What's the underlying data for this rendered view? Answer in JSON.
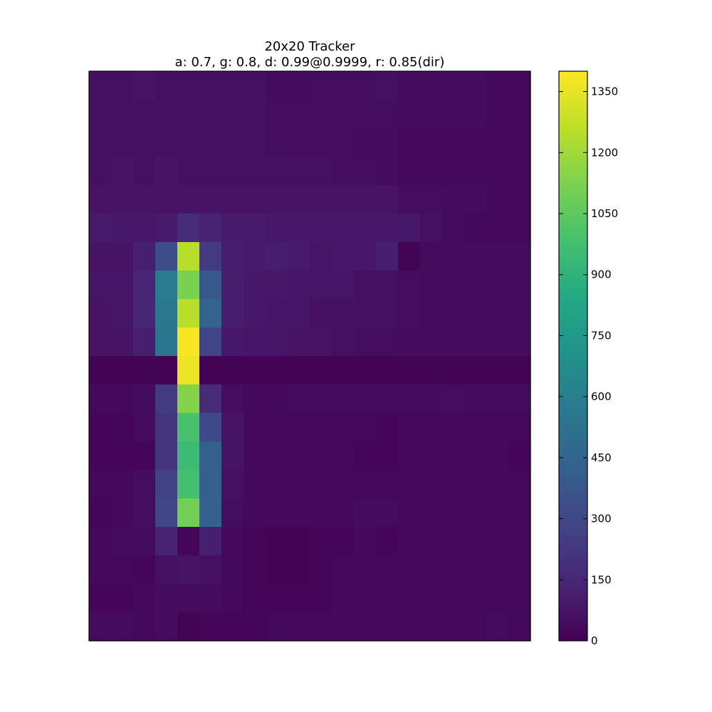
{
  "chart_data": {
    "type": "heatmap",
    "title": "20x20 Tracker",
    "subtitle": "a: 0.7, g: 0.8, d: 0.99@0.9999, r: 0.85(dir)",
    "xlabel": "",
    "ylabel": "",
    "rows": 20,
    "cols": 20,
    "colorbar": {
      "vmin": 0,
      "vmax": 1400,
      "ticks": [
        0,
        150,
        300,
        450,
        600,
        750,
        900,
        1050,
        1200,
        1350
      ],
      "colormap": "viridis"
    },
    "values": [
      [
        60,
        60,
        70,
        60,
        60,
        60,
        60,
        60,
        40,
        40,
        50,
        50,
        50,
        60,
        40,
        40,
        40,
        40,
        30,
        30
      ],
      [
        60,
        60,
        60,
        60,
        60,
        60,
        60,
        60,
        50,
        50,
        50,
        50,
        50,
        50,
        40,
        40,
        40,
        40,
        30,
        30
      ],
      [
        60,
        60,
        60,
        60,
        60,
        60,
        60,
        60,
        50,
        50,
        50,
        50,
        40,
        40,
        30,
        30,
        30,
        30,
        30,
        30
      ],
      [
        60,
        70,
        60,
        70,
        60,
        60,
        60,
        60,
        60,
        60,
        60,
        50,
        50,
        40,
        30,
        30,
        30,
        30,
        30,
        30
      ],
      [
        70,
        70,
        70,
        70,
        70,
        70,
        70,
        70,
        70,
        70,
        70,
        70,
        70,
        70,
        50,
        50,
        40,
        40,
        30,
        30
      ],
      [
        100,
        90,
        90,
        100,
        180,
        130,
        100,
        100,
        90,
        90,
        90,
        90,
        90,
        90,
        90,
        60,
        40,
        30,
        30,
        30
      ],
      [
        70,
        70,
        120,
        320,
        1250,
        240,
        110,
        100,
        110,
        100,
        80,
        90,
        90,
        120,
        10,
        40,
        40,
        40,
        40,
        40
      ],
      [
        80,
        80,
        150,
        580,
        1120,
        380,
        110,
        90,
        90,
        80,
        80,
        80,
        60,
        60,
        50,
        40,
        40,
        40,
        40,
        40
      ],
      [
        70,
        80,
        150,
        560,
        1250,
        450,
        110,
        90,
        80,
        80,
        60,
        60,
        60,
        60,
        50,
        40,
        40,
        40,
        40,
        40
      ],
      [
        70,
        70,
        120,
        550,
        1390,
        280,
        90,
        80,
        80,
        70,
        70,
        60,
        50,
        50,
        40,
        40,
        40,
        40,
        40,
        40
      ],
      [
        10,
        10,
        10,
        10,
        1360,
        10,
        10,
        10,
        10,
        10,
        10,
        10,
        10,
        10,
        10,
        10,
        10,
        10,
        10,
        10
      ],
      [
        30,
        30,
        40,
        240,
        1140,
        170,
        50,
        30,
        30,
        40,
        40,
        40,
        40,
        40,
        40,
        40,
        50,
        40,
        40,
        40
      ],
      [
        20,
        20,
        40,
        210,
        990,
        300,
        70,
        30,
        30,
        30,
        30,
        30,
        30,
        20,
        30,
        30,
        30,
        30,
        30,
        30
      ],
      [
        20,
        20,
        20,
        210,
        950,
        420,
        70,
        30,
        30,
        30,
        30,
        30,
        20,
        20,
        30,
        30,
        30,
        30,
        30,
        20
      ],
      [
        30,
        30,
        50,
        270,
        980,
        420,
        60,
        30,
        30,
        30,
        30,
        30,
        30,
        30,
        30,
        30,
        30,
        30,
        30,
        30
      ],
      [
        20,
        30,
        50,
        290,
        1100,
        430,
        50,
        30,
        30,
        30,
        30,
        30,
        40,
        40,
        30,
        30,
        30,
        30,
        30,
        30
      ],
      [
        30,
        40,
        40,
        130,
        20,
        120,
        30,
        20,
        10,
        10,
        20,
        20,
        30,
        20,
        30,
        30,
        30,
        30,
        30,
        30
      ],
      [
        30,
        30,
        20,
        60,
        70,
        60,
        30,
        20,
        10,
        10,
        20,
        30,
        30,
        30,
        30,
        30,
        30,
        30,
        30,
        30
      ],
      [
        20,
        20,
        30,
        40,
        40,
        40,
        30,
        20,
        20,
        20,
        20,
        30,
        30,
        30,
        30,
        30,
        30,
        30,
        30,
        30
      ],
      [
        40,
        40,
        30,
        40,
        10,
        20,
        20,
        20,
        30,
        30,
        30,
        30,
        30,
        30,
        30,
        30,
        30,
        30,
        40,
        30
      ]
    ]
  }
}
